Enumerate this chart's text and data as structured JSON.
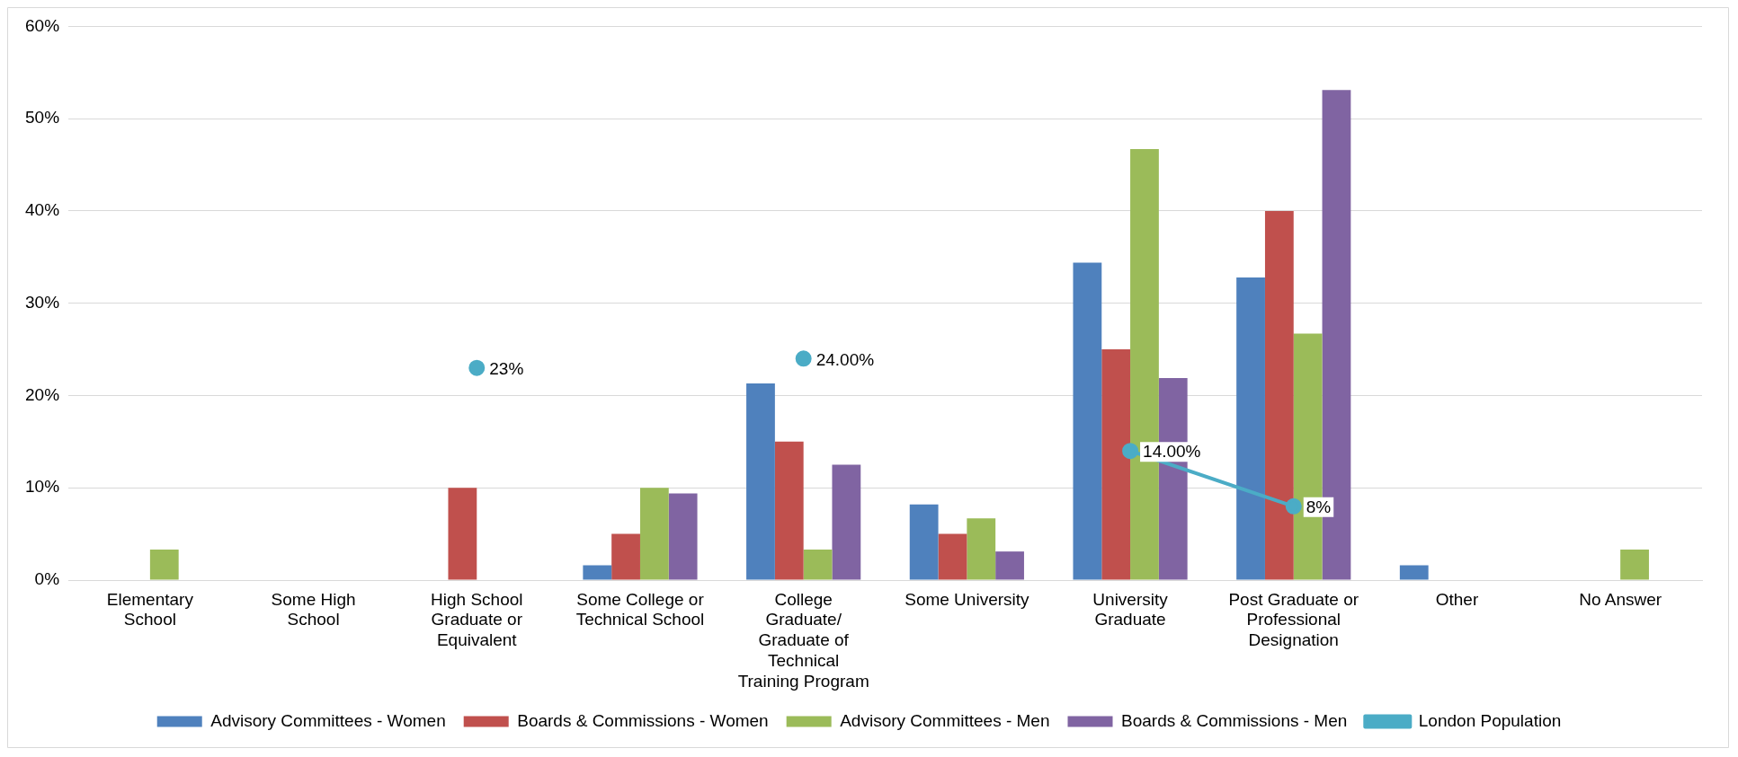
{
  "chart_data": {
    "type": "bar",
    "categories": [
      "Elementary School",
      "Some High School",
      "High School Graduate or Equivalent",
      "Some College or Technical School",
      "College Graduate/ Graduate of Technical Training Program",
      "Some University",
      "University Graduate",
      "Post Graduate or Professional Designation",
      "Other",
      "No Answer"
    ],
    "series": [
      {
        "name": "Advisory Committees - Women",
        "color": "#4f81bd",
        "values": [
          null,
          null,
          null,
          1.6,
          21.3,
          8.2,
          34.4,
          32.8,
          1.6,
          null
        ]
      },
      {
        "name": "Boards & Commissions - Women",
        "color": "#c0504d",
        "values": [
          null,
          null,
          10,
          5,
          15,
          5,
          25,
          40,
          null,
          null
        ]
      },
      {
        "name": "Advisory Committees - Men",
        "color": "#9bbb59",
        "values": [
          3.3,
          null,
          null,
          10,
          3.3,
          6.7,
          46.7,
          26.7,
          null,
          3.3
        ]
      },
      {
        "name": "Boards & Commissions - Men",
        "color": "#8064a2",
        "values": [
          null,
          null,
          null,
          9.4,
          12.5,
          3.1,
          21.9,
          53.1,
          null,
          null
        ]
      },
      {
        "name": "London Population",
        "type": "line",
        "color": "#4bacc6",
        "marker": "circle",
        "values": [
          null,
          null,
          23,
          null,
          24,
          null,
          14,
          8,
          null,
          null
        ],
        "value_labels": [
          null,
          null,
          "23%",
          null,
          "24.00%",
          null,
          "14.00%",
          "8%",
          null,
          null
        ]
      }
    ],
    "ylim": [
      0,
      60
    ],
    "yticks": [
      {
        "value": 0,
        "label": "0%"
      },
      {
        "value": 10,
        "label": "10%"
      },
      {
        "value": 20,
        "label": "20%"
      },
      {
        "value": 30,
        "label": "30%"
      },
      {
        "value": 40,
        "label": "40%"
      },
      {
        "value": 50,
        "label": "50%"
      },
      {
        "value": 60,
        "label": "60%"
      }
    ],
    "grid": "y",
    "legend": "bottom"
  }
}
